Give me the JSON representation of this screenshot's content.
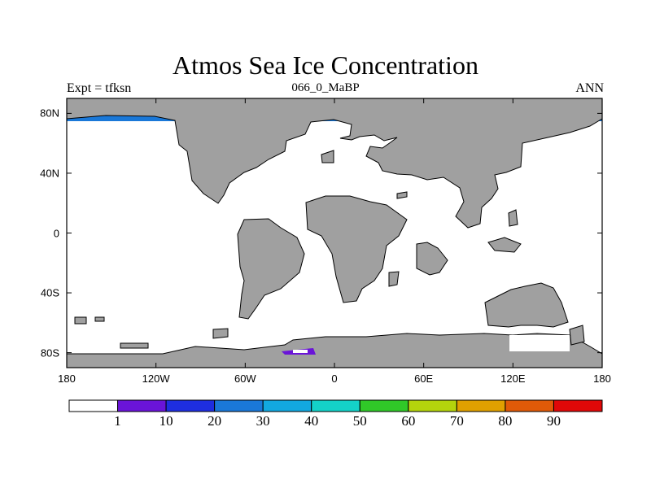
{
  "title": "Atmos Sea Ice Concentration",
  "subtitle_left": "Expt = tfksn",
  "subtitle_center": "066_0_MaBP",
  "subtitle_right": "ANN",
  "y_axis": {
    "ticks": [
      {
        "lat": 80,
        "label": "80N"
      },
      {
        "lat": 40,
        "label": "40N"
      },
      {
        "lat": 0,
        "label": "0"
      },
      {
        "lat": -40,
        "label": "40S"
      },
      {
        "lat": -80,
        "label": "80S"
      }
    ]
  },
  "x_axis": {
    "ticks": [
      {
        "lon": -180,
        "label": "180"
      },
      {
        "lon": -120,
        "label": "120W"
      },
      {
        "lon": -60,
        "label": "60W"
      },
      {
        "lon": 0,
        "label": "0"
      },
      {
        "lon": 60,
        "label": "60E"
      },
      {
        "lon": 120,
        "label": "120E"
      },
      {
        "lon": 180,
        "label": "180"
      }
    ]
  },
  "colorbar": {
    "levels": [
      "1",
      "10",
      "20",
      "30",
      "40",
      "50",
      "60",
      "70",
      "80",
      "90"
    ],
    "colors": [
      "#ffffff",
      "#6a14d8",
      "#1e2ee0",
      "#1a78d8",
      "#12a8e0",
      "#14d2c8",
      "#30c828",
      "#b4d40c",
      "#e0a000",
      "#e05a08",
      "#e00808"
    ]
  },
  "colors": {
    "land": "#a0a0a0",
    "ocean": "#ffffff",
    "ice_low": "#6a14d8",
    "ice_mid": "#12a8e0",
    "ice_teal": "#14d2c8"
  }
}
